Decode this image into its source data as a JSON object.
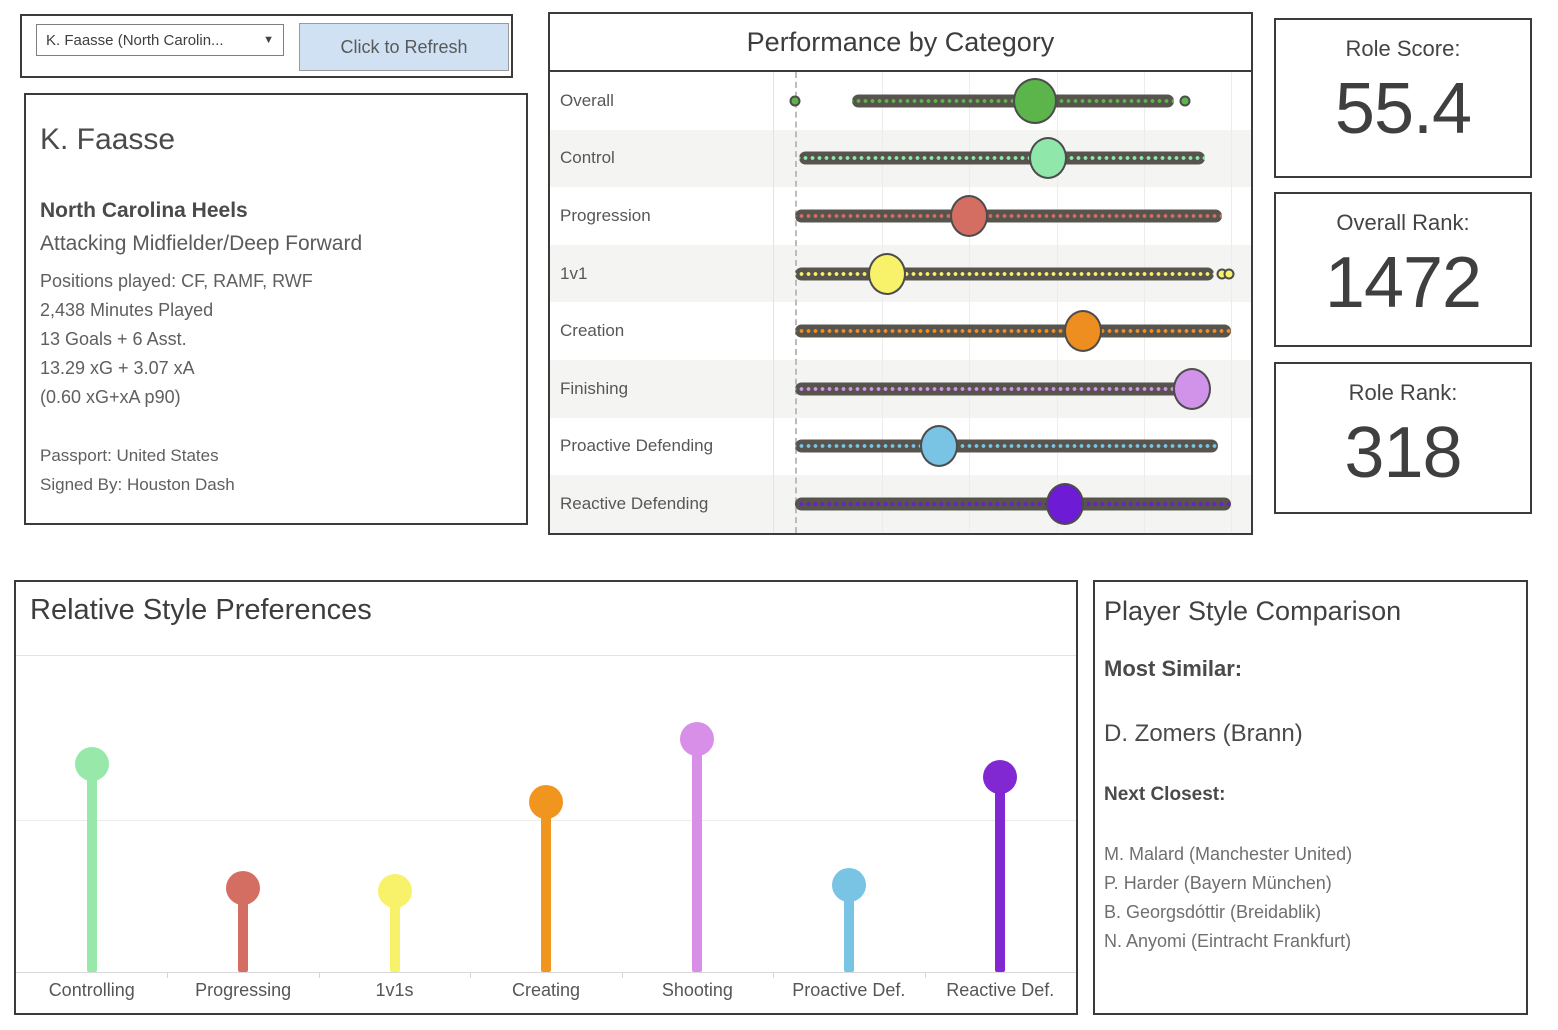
{
  "filter": {
    "dropdown_value": "K. Faasse (North Carolin...",
    "dropdown_caret": "▼",
    "refresh_label": "Click to Refresh"
  },
  "player_card": {
    "name": "K. Faasse",
    "team": "North Carolina Heels",
    "role": "Attacking Midfielder/Deep Forward",
    "lines": [
      "Positions played: CF, RAMF, RWF",
      "2,438 Minutes Played",
      "13 Goals + 6 Asst.",
      "13.29 xG + 3.07 xA",
      "(0.60 xG+xA p90)"
    ],
    "footer_lines": [
      "Passport: United States",
      "Signed By: Houston Dash"
    ]
  },
  "stat_boxes": [
    {
      "label": "Role Score:",
      "value": "55.4"
    },
    {
      "label": "Overall Rank:",
      "value": "1472"
    },
    {
      "label": "Role Rank:",
      "value": "318"
    }
  ],
  "comparison": {
    "title": "Player Style Comparison",
    "most_similar_label": "Most Similar:",
    "most_similar": "D. Zomers (Brann)",
    "next_closest_label": "Next Closest:",
    "next_closest": [
      "M. Malard (Manchester United)",
      "P. Harder (Bayern München)",
      "B. Georgsdóttir (Breidablik)",
      "N. Anyomi (Eintracht Frankfurt)"
    ]
  },
  "chart_data": [
    {
      "type": "scatter",
      "variant": "dot-strip-with-player-marker",
      "title": "Performance by Category",
      "categories": [
        "Overall",
        "Control",
        "Progression",
        "1v1",
        "Creation",
        "Finishing",
        "Proactive Defending",
        "Reactive Defending"
      ],
      "player_values": [
        55,
        58,
        40,
        21,
        66,
        91,
        33,
        62
      ],
      "colors": [
        "#5cb54b",
        "#8fe8a9",
        "#d56e62",
        "#f7f269",
        "#ee8d20",
        "#d192ea",
        "#79c3e4",
        "#6d1bd4"
      ],
      "strip_ranges": [
        [
          13,
          87
        ],
        [
          1,
          94
        ],
        [
          0,
          98
        ],
        [
          0,
          96
        ],
        [
          0,
          100
        ],
        [
          0,
          95
        ],
        [
          0,
          97
        ],
        [
          0,
          100
        ]
      ],
      "outlier_dots": [
        [
          0,
          89.5
        ],
        [],
        [],
        [
          98,
          99.6
        ],
        [],
        [],
        [],
        []
      ],
      "xlim": [
        0,
        100
      ],
      "reference_line_x": 0,
      "x_tick_labels_shown": false,
      "grid": true,
      "legend": "none",
      "track_color": "#56544d"
    },
    {
      "type": "lollipop",
      "title": "Relative Style Preferences",
      "categories": [
        "Controlling",
        "Progressing",
        "1v1s",
        "Creating",
        "Shooting",
        "Proactive Def.",
        "Reactive Def."
      ],
      "values": [
        1.37,
        0.55,
        0.53,
        1.12,
        1.53,
        0.57,
        1.28
      ],
      "colors": [
        "#98e9a9",
        "#d56e62",
        "#f7f269",
        "#f0961f",
        "#d78fe8",
        "#79c3e4",
        "#8228d2"
      ],
      "ylim": [
        0,
        2.1
      ],
      "gridline_values": [
        1,
        2
      ],
      "y_tick_labels_shown": false,
      "legend": "none"
    }
  ]
}
